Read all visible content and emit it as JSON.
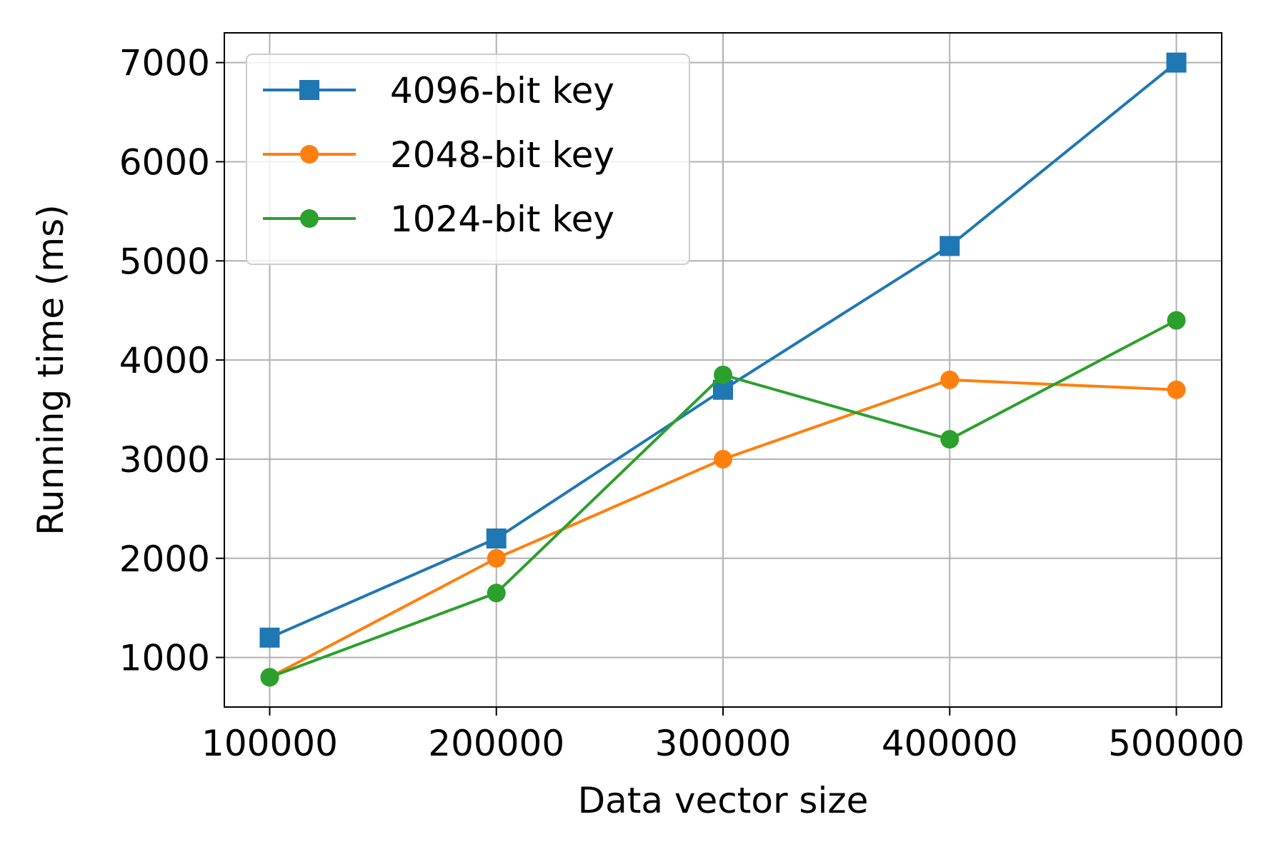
{
  "chart_data": {
    "type": "line",
    "title": "",
    "xlabel": "Data vector size",
    "ylabel": "Running time (ms)",
    "x": [
      100000,
      200000,
      300000,
      400000,
      500000
    ],
    "xticks": [
      "100000",
      "200000",
      "300000",
      "400000",
      "500000"
    ],
    "yticks": [
      "1000",
      "2000",
      "3000",
      "4000",
      "5000",
      "6000",
      "7000"
    ],
    "ytick_values": [
      1000,
      2000,
      3000,
      4000,
      5000,
      6000,
      7000
    ],
    "xlim": [
      80000,
      520000
    ],
    "ylim": [
      500,
      7300
    ],
    "grid": true,
    "legend_position": "top-left",
    "series": [
      {
        "name": "4096-bit key",
        "values": [
          1200,
          2200,
          3700,
          5150,
          7000
        ],
        "color": "#1f77b4",
        "marker": "square"
      },
      {
        "name": "2048-bit key",
        "values": [
          800,
          2000,
          3000,
          3800,
          3700
        ],
        "color": "#ff7f0e",
        "marker": "circle"
      },
      {
        "name": "1024-bit key",
        "values": [
          800,
          1650,
          3850,
          3200,
          4400
        ],
        "color": "#2ca02c",
        "marker": "circle"
      }
    ]
  }
}
